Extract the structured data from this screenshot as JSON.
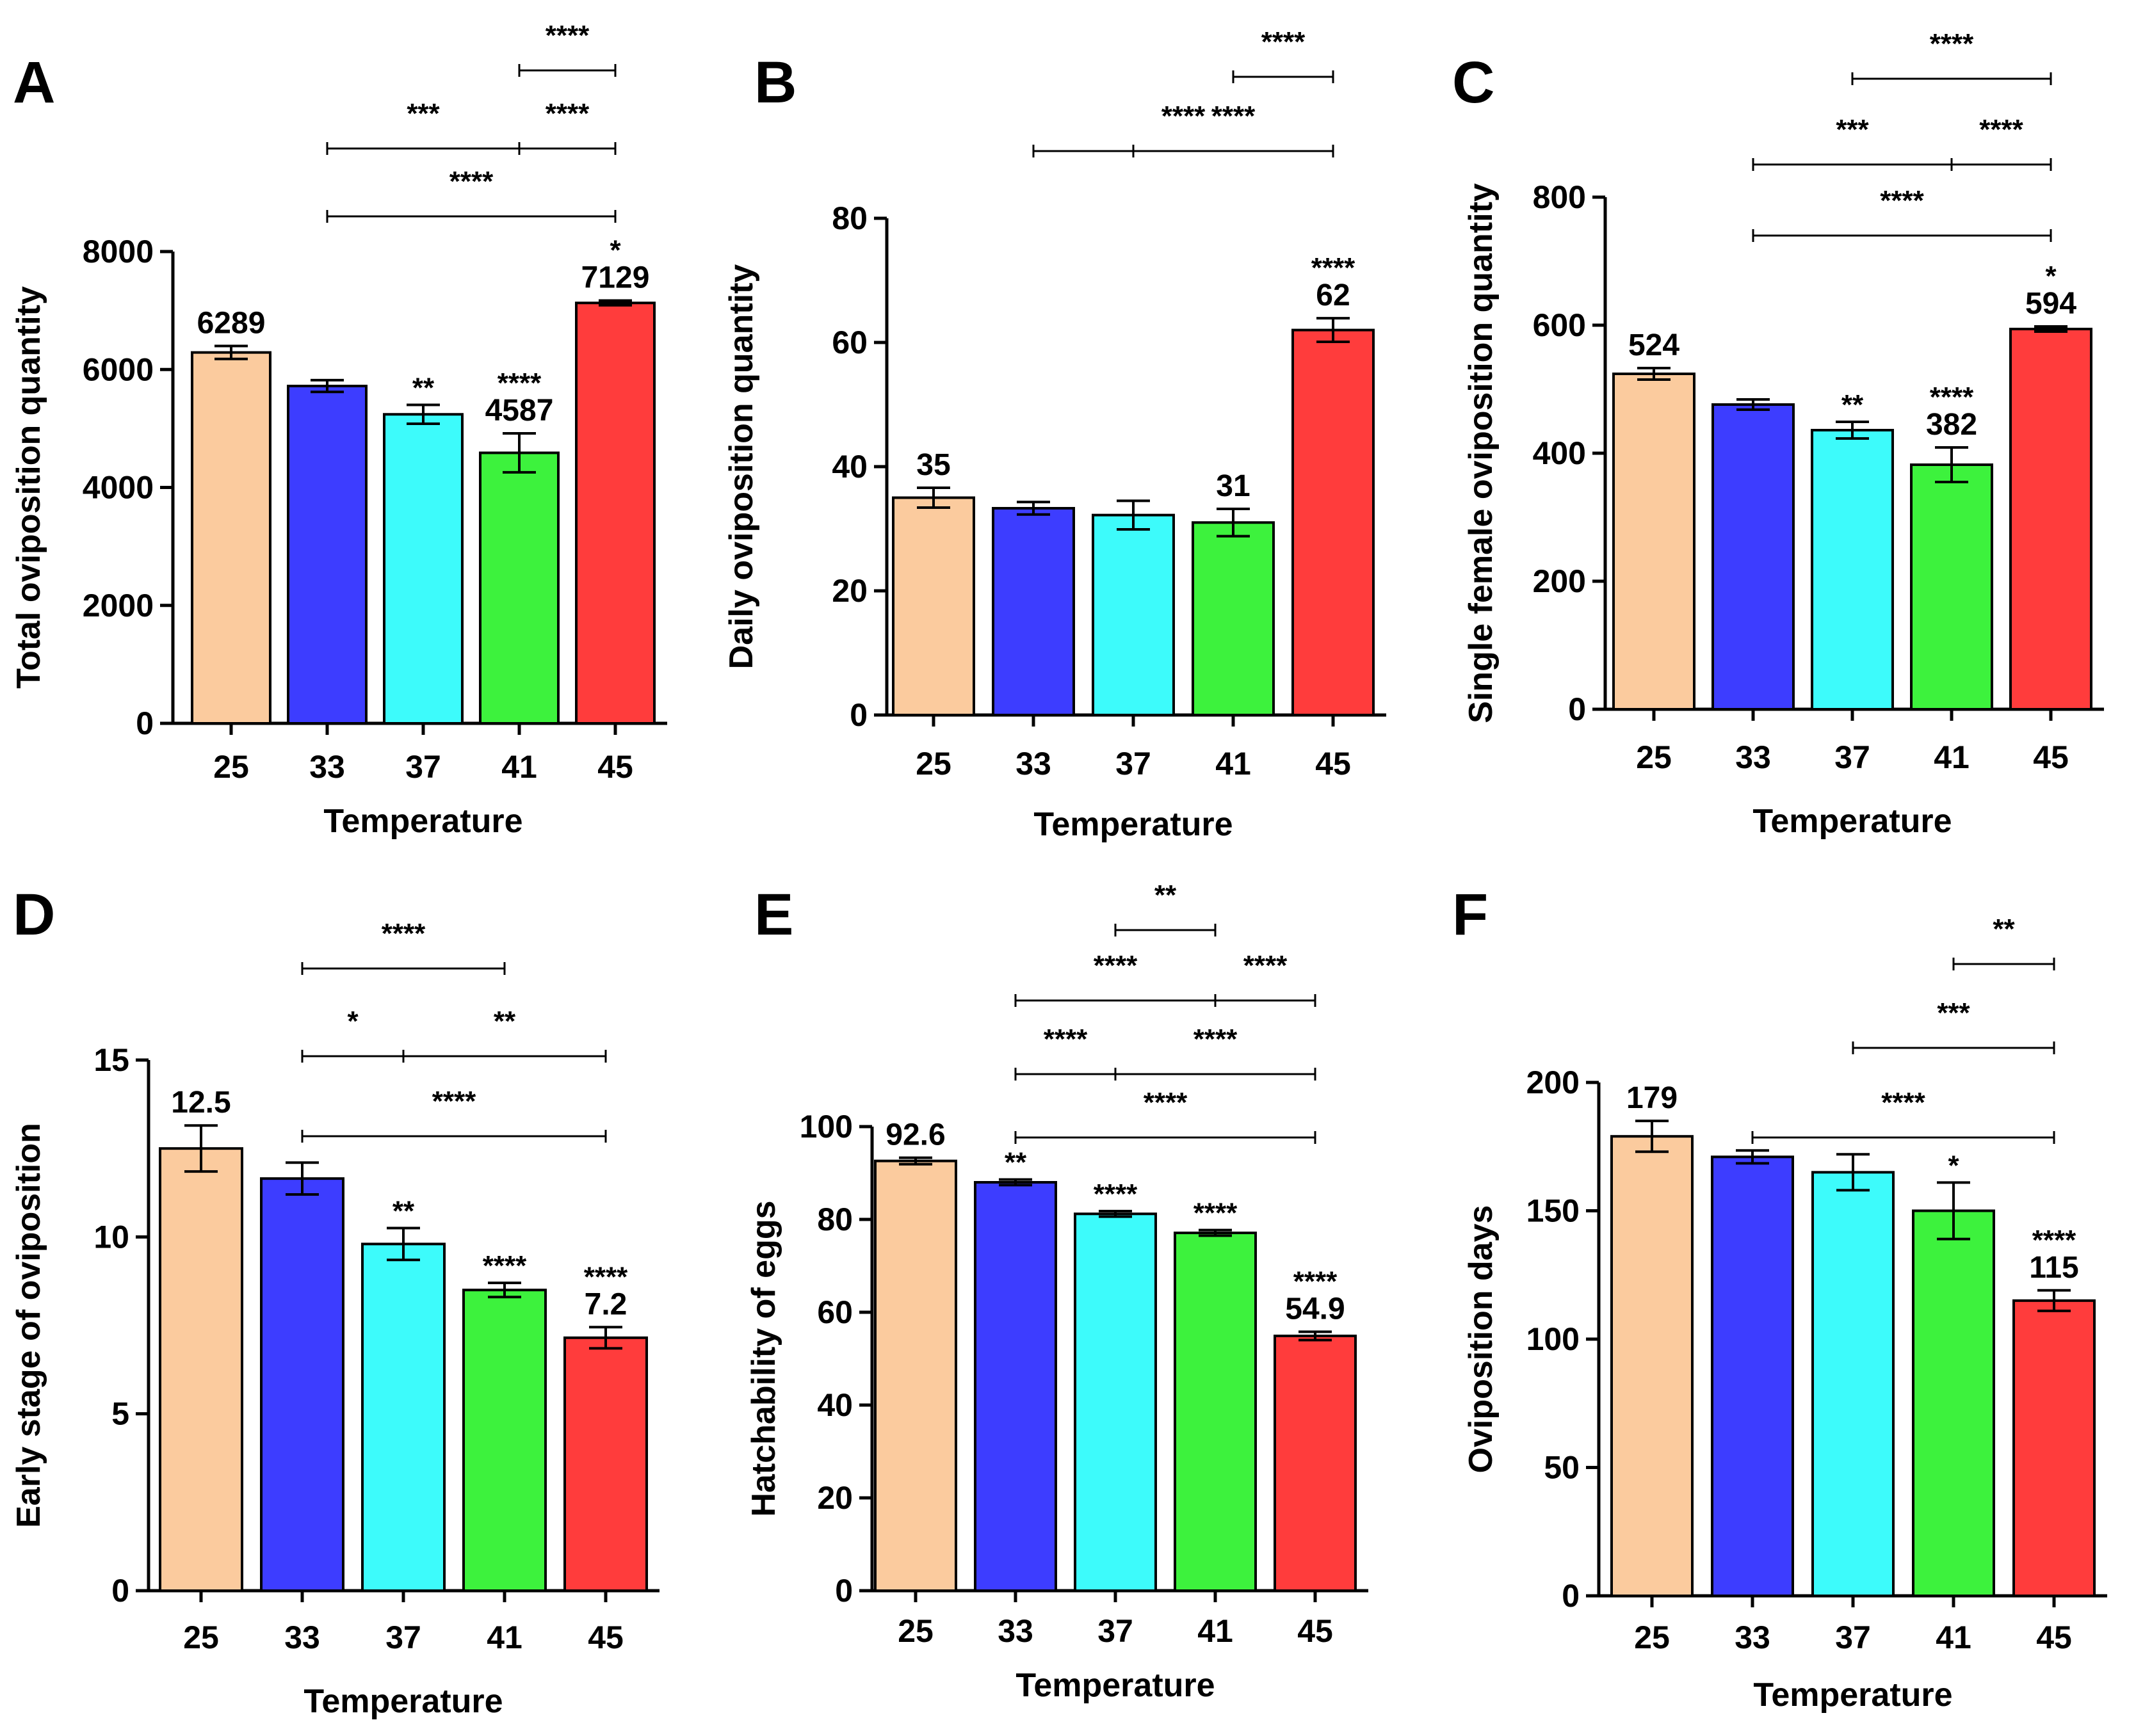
{
  "figure": {
    "panels": [
      "A",
      "B",
      "C",
      "D",
      "E",
      "F"
    ]
  },
  "colors": {
    "25": "#FBCB9E",
    "33": "#3D3DFF",
    "37": "#3DFBFB",
    "41": "#3DF23D",
    "45": "#FF3C3C"
  },
  "chart_data": [
    {
      "panel": "A",
      "type": "bar",
      "title": "",
      "xlabel": "Temperature",
      "ylabel": "Total oviposition quantity",
      "categories": [
        "25",
        "33",
        "37",
        "41",
        "45"
      ],
      "values": [
        6289,
        5720,
        5240,
        4587,
        7129
      ],
      "errors": [
        110,
        100,
        160,
        330,
        40
      ],
      "ylim": [
        0,
        8000
      ],
      "yticks": [
        "0",
        "2000",
        "4000",
        "6000",
        "8000"
      ],
      "value_labels": [
        "6289",
        "",
        "",
        "4587",
        "7129"
      ],
      "sig_labels": [
        "",
        "",
        "**",
        "****",
        "*"
      ],
      "brackets": [
        {
          "from": 3,
          "to": 4,
          "label": "****"
        },
        {
          "from": 1,
          "to": 3,
          "label": "***"
        },
        {
          "from": 3,
          "to": 4,
          "label": "****"
        },
        {
          "from": 1,
          "to": 4,
          "label": "****"
        }
      ]
    },
    {
      "panel": "B",
      "type": "bar",
      "title": "",
      "xlabel": "Temperature",
      "ylabel": "Daily oviposition quantity",
      "categories": [
        "25",
        "33",
        "37",
        "41",
        "45"
      ],
      "values": [
        35,
        33.3,
        32.2,
        31,
        62
      ],
      "errors": [
        1.6,
        1,
        2.3,
        2.2,
        1.9
      ],
      "ylim": [
        0,
        80
      ],
      "yticks": [
        "0",
        "20",
        "40",
        "60",
        "80"
      ],
      "value_labels": [
        "35",
        "",
        "",
        "31",
        "62"
      ],
      "sig_labels": [
        "",
        "",
        "",
        "",
        "****"
      ],
      "brackets": [
        {
          "from": 3,
          "to": 4,
          "label": "****"
        },
        {
          "from": 2,
          "to": 4,
          "label": "****"
        },
        {
          "from": 1,
          "to": 4,
          "label": "****"
        }
      ]
    },
    {
      "panel": "C",
      "type": "bar",
      "title": "",
      "xlabel": "Temperature",
      "ylabel": "Single female oviposition quantity",
      "categories": [
        "25",
        "33",
        "37",
        "41",
        "45"
      ],
      "values": [
        524,
        476,
        436,
        382,
        594
      ],
      "errors": [
        9,
        8,
        13,
        27,
        4
      ],
      "ylim": [
        0,
        800
      ],
      "yticks": [
        "0",
        "200",
        "400",
        "600",
        "800"
      ],
      "value_labels": [
        "524",
        "",
        "",
        "382",
        "594"
      ],
      "sig_labels": [
        "",
        "",
        "**",
        "****",
        "*"
      ],
      "brackets": [
        {
          "from": 2,
          "to": 4,
          "label": "****"
        },
        {
          "from": 1,
          "to": 3,
          "label": "***"
        },
        {
          "from": 3,
          "to": 4,
          "label": "****"
        },
        {
          "from": 1,
          "to": 4,
          "label": "****"
        }
      ]
    },
    {
      "panel": "D",
      "type": "bar",
      "title": "",
      "xlabel": "Temperature",
      "ylabel": "Early stage of oviposition",
      "categories": [
        "25",
        "33",
        "37",
        "41",
        "45"
      ],
      "values": [
        12.5,
        11.65,
        9.8,
        8.5,
        7.15
      ],
      "errors": [
        0.65,
        0.45,
        0.45,
        0.2,
        0.3
      ],
      "ylim": [
        0,
        15
      ],
      "yticks": [
        "0",
        "5",
        "10",
        "15"
      ],
      "value_labels": [
        "12.5",
        "",
        "",
        "",
        "7.2"
      ],
      "sig_labels": [
        "",
        "",
        "**",
        "****",
        "****"
      ],
      "brackets": [
        {
          "from": 1,
          "to": 3,
          "label": "****"
        },
        {
          "from": 1,
          "to": 2,
          "label": "*"
        },
        {
          "from": 2,
          "to": 4,
          "label": "**"
        },
        {
          "from": 1,
          "to": 4,
          "label": "****"
        }
      ]
    },
    {
      "panel": "E",
      "type": "bar",
      "title": "",
      "xlabel": "Temperature",
      "ylabel": "Hatchability of eggs",
      "categories": [
        "25",
        "33",
        "37",
        "41",
        "45"
      ],
      "values": [
        92.6,
        88,
        81.2,
        77.1,
        54.9
      ],
      "errors": [
        0.7,
        0.6,
        0.6,
        0.6,
        0.9
      ],
      "ylim": [
        0,
        100
      ],
      "yticks": [
        "0",
        "20",
        "40",
        "60",
        "80",
        "100"
      ],
      "value_labels": [
        "92.6",
        "",
        "",
        "",
        "54.9"
      ],
      "sig_labels": [
        "",
        "**",
        "****",
        "****",
        "****"
      ],
      "brackets": [
        {
          "from": 2,
          "to": 3,
          "label": "**"
        },
        {
          "from": 1,
          "to": 3,
          "label": "****"
        },
        {
          "from": 3,
          "to": 4,
          "label": "****"
        },
        {
          "from": 1,
          "to": 2,
          "label": "****"
        },
        {
          "from": 2,
          "to": 4,
          "label": "****"
        },
        {
          "from": 1,
          "to": 4,
          "label": "****"
        }
      ]
    },
    {
      "panel": "F",
      "type": "bar",
      "title": "",
      "xlabel": "Temperature",
      "ylabel": "Oviposition days",
      "categories": [
        "25",
        "33",
        "37",
        "41",
        "45"
      ],
      "values": [
        179,
        171,
        165,
        150,
        115
      ],
      "errors": [
        6,
        2.5,
        7,
        11,
        4
      ],
      "ylim": [
        0,
        200
      ],
      "yticks": [
        "0",
        "50",
        "100",
        "150",
        "200"
      ],
      "value_labels": [
        "179",
        "",
        "",
        "",
        "115"
      ],
      "sig_labels": [
        "",
        "",
        "",
        "*",
        "****"
      ],
      "brackets": [
        {
          "from": 3,
          "to": 4,
          "label": "**"
        },
        {
          "from": 2,
          "to": 4,
          "label": "***"
        },
        {
          "from": 1,
          "to": 4,
          "label": "****"
        }
      ]
    }
  ]
}
